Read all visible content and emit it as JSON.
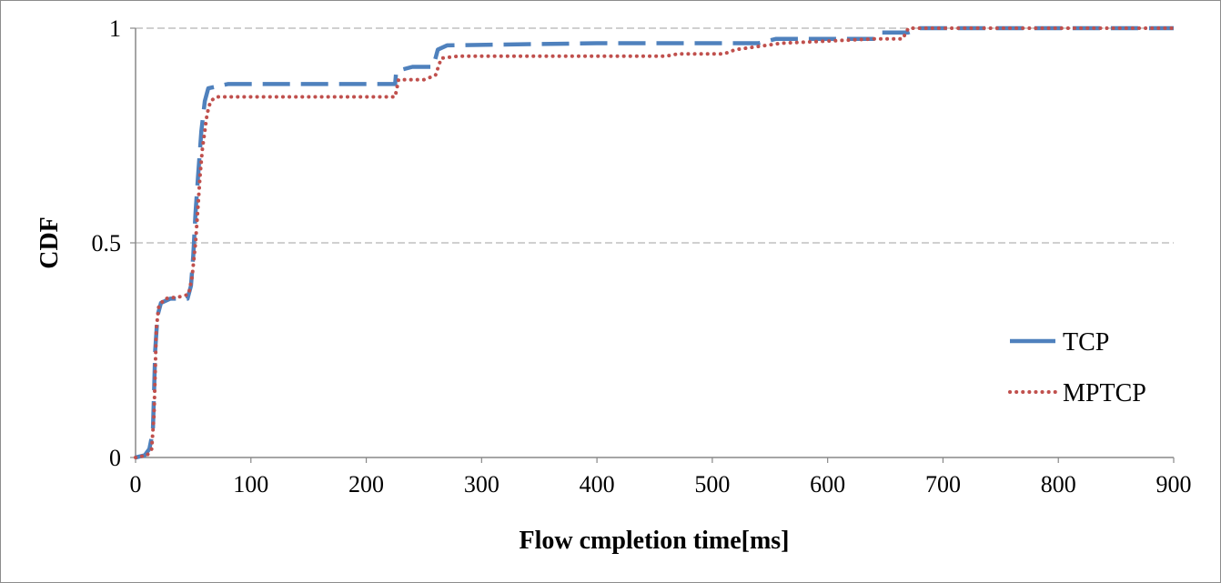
{
  "chart_data": {
    "type": "line",
    "xlabel": "Flow cmpletion time[ms]",
    "ylabel": "CDF",
    "xlim": [
      0,
      900
    ],
    "ylim": [
      0,
      1
    ],
    "x_ticks": [
      0,
      100,
      200,
      300,
      400,
      500,
      600,
      700,
      800,
      900
    ],
    "y_ticks": [
      0,
      0.5,
      1
    ],
    "y_tick_labels": [
      "0",
      "0.5",
      "1"
    ],
    "grid": "horizontal dashed",
    "legend_position": "right",
    "series": [
      {
        "name": "TCP",
        "color": "#4f81bd",
        "style": "dashed",
        "points": [
          [
            0,
            0
          ],
          [
            8,
            0.005
          ],
          [
            12,
            0.02
          ],
          [
            15,
            0.06
          ],
          [
            16,
            0.15
          ],
          [
            17,
            0.25
          ],
          [
            19,
            0.33
          ],
          [
            22,
            0.36
          ],
          [
            30,
            0.37
          ],
          [
            45,
            0.37
          ],
          [
            48,
            0.4
          ],
          [
            50,
            0.47
          ],
          [
            52,
            0.57
          ],
          [
            54,
            0.65
          ],
          [
            57,
            0.76
          ],
          [
            60,
            0.83
          ],
          [
            63,
            0.86
          ],
          [
            80,
            0.87
          ],
          [
            225,
            0.87
          ],
          [
            226,
            0.9
          ],
          [
            240,
            0.91
          ],
          [
            258,
            0.91
          ],
          [
            262,
            0.95
          ],
          [
            270,
            0.96
          ],
          [
            400,
            0.965
          ],
          [
            540,
            0.965
          ],
          [
            555,
            0.975
          ],
          [
            640,
            0.975
          ],
          [
            645,
            0.99
          ],
          [
            670,
            0.99
          ],
          [
            680,
            1.0
          ],
          [
            900,
            1.0
          ]
        ]
      },
      {
        "name": "MPTCP",
        "color": "#c0504d",
        "style": "dotted",
        "points": [
          [
            0,
            0
          ],
          [
            10,
            0.005
          ],
          [
            14,
            0.02
          ],
          [
            16,
            0.1
          ],
          [
            17,
            0.2
          ],
          [
            18,
            0.3
          ],
          [
            20,
            0.35
          ],
          [
            25,
            0.37
          ],
          [
            40,
            0.375
          ],
          [
            46,
            0.38
          ],
          [
            49,
            0.42
          ],
          [
            52,
            0.5
          ],
          [
            54,
            0.58
          ],
          [
            56,
            0.66
          ],
          [
            58,
            0.72
          ],
          [
            60,
            0.76
          ],
          [
            62,
            0.8
          ],
          [
            65,
            0.83
          ],
          [
            70,
            0.84
          ],
          [
            225,
            0.84
          ],
          [
            228,
            0.88
          ],
          [
            250,
            0.88
          ],
          [
            260,
            0.89
          ],
          [
            265,
            0.93
          ],
          [
            280,
            0.935
          ],
          [
            460,
            0.935
          ],
          [
            470,
            0.94
          ],
          [
            510,
            0.94
          ],
          [
            520,
            0.95
          ],
          [
            560,
            0.965
          ],
          [
            640,
            0.975
          ],
          [
            665,
            0.975
          ],
          [
            670,
            1.0
          ],
          [
            900,
            1.0
          ]
        ]
      }
    ]
  }
}
